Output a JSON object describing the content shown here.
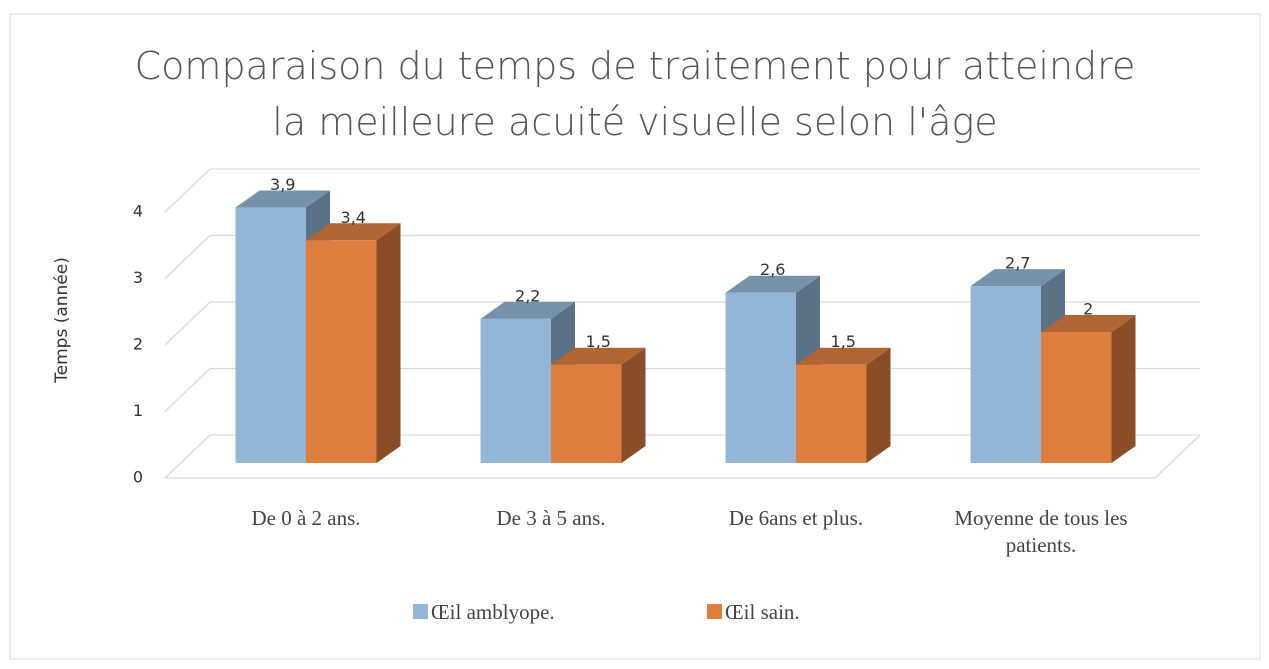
{
  "chart_data": {
    "type": "bar3d",
    "title": "Comparaison du temps de traitement pour atteindre la meilleure acuité visuelle selon l'âge",
    "y_label": "Temps (année)",
    "categories": [
      "De 0 à 2 ans.",
      "De 3 à 5 ans.",
      "De 6ans et plus.",
      "Moyenne de tous les patients."
    ],
    "series": [
      {
        "name": "Œil amblyope.",
        "color": "#93b6d6",
        "values": [
          3.9,
          2.2,
          2.6,
          2.7
        ],
        "value_labels": [
          "3,9",
          "2,2",
          "2,6",
          "2,7"
        ]
      },
      {
        "name": "Œil sain.",
        "color": "#dd7e3f",
        "values": [
          3.4,
          1.5,
          1.5,
          2
        ],
        "value_labels": [
          "3,4",
          "1,5",
          "1,5",
          "2"
        ]
      }
    ],
    "ylim": [
      0,
      4
    ],
    "yticks": [
      0,
      1,
      2,
      3,
      4
    ],
    "grid": true,
    "legend": "bottom"
  }
}
